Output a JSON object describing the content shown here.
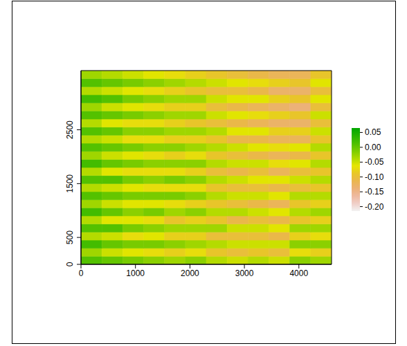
{
  "chart_data": {
    "type": "heatmap",
    "xlim": [
      0,
      4600
    ],
    "ylim": [
      0,
      3600
    ],
    "xticks": [
      0,
      1000,
      2000,
      3000,
      4000
    ],
    "yticks": [
      0,
      500,
      1500,
      2500
    ],
    "x_edges": [
      0,
      383,
      767,
      1150,
      1533,
      1917,
      2300,
      2683,
      3067,
      3450,
      3833,
      4217,
      4600
    ],
    "y_edges": [
      0,
      150,
      300,
      450,
      600,
      750,
      900,
      1050,
      1200,
      1350,
      1500,
      1650,
      1800,
      1950,
      2100,
      2250,
      2400,
      2550,
      2700,
      2850,
      3000,
      3150,
      3300,
      3450,
      3600
    ],
    "cells": [
      [
        0.01,
        0.0,
        -0.01,
        -0.02,
        -0.03,
        -0.02,
        -0.04,
        -0.05,
        -0.04,
        -0.05,
        -0.02,
        -0.03
      ],
      [
        -0.03,
        -0.05,
        -0.06,
        -0.07,
        -0.08,
        -0.07,
        -0.09,
        -0.1,
        -0.09,
        -0.1,
        -0.07,
        -0.08
      ],
      [
        0.02,
        0.0,
        -0.01,
        -0.01,
        -0.02,
        -0.03,
        -0.04,
        -0.05,
        -0.05,
        -0.05,
        -0.02,
        -0.02
      ],
      [
        -0.04,
        -0.05,
        -0.07,
        -0.06,
        -0.08,
        -0.08,
        -0.1,
        -0.1,
        -0.1,
        -0.11,
        -0.08,
        -0.07
      ],
      [
        0.01,
        0.01,
        -0.01,
        -0.02,
        -0.03,
        -0.03,
        -0.03,
        -0.05,
        -0.05,
        -0.06,
        -0.03,
        -0.03
      ],
      [
        -0.04,
        -0.06,
        -0.06,
        -0.07,
        -0.09,
        -0.08,
        -0.09,
        -0.11,
        -0.1,
        -0.11,
        -0.09,
        -0.08
      ],
      [
        0.02,
        0.0,
        -0.02,
        -0.01,
        -0.03,
        -0.02,
        -0.04,
        -0.04,
        -0.05,
        -0.06,
        -0.04,
        -0.03
      ],
      [
        -0.03,
        -0.05,
        -0.06,
        -0.06,
        -0.07,
        -0.08,
        -0.09,
        -0.1,
        -0.11,
        -0.12,
        -0.09,
        -0.08
      ],
      [
        0.01,
        0.0,
        -0.01,
        -0.01,
        -0.01,
        -0.02,
        -0.04,
        -0.05,
        -0.05,
        -0.06,
        -0.04,
        -0.04
      ],
      [
        -0.04,
        -0.05,
        -0.06,
        -0.07,
        -0.07,
        -0.07,
        -0.09,
        -0.1,
        -0.1,
        -0.11,
        -0.1,
        -0.09
      ],
      [
        0.01,
        0.01,
        -0.01,
        -0.02,
        -0.01,
        -0.02,
        -0.04,
        -0.05,
        -0.06,
        -0.06,
        -0.05,
        -0.04
      ],
      [
        -0.04,
        -0.06,
        -0.07,
        -0.07,
        -0.07,
        -0.08,
        -0.1,
        -0.11,
        -0.1,
        -0.12,
        -0.1,
        -0.09
      ],
      [
        0.02,
        0.0,
        -0.01,
        -0.02,
        -0.02,
        -0.02,
        -0.04,
        -0.05,
        -0.05,
        -0.07,
        -0.06,
        -0.04
      ],
      [
        -0.03,
        -0.05,
        -0.06,
        -0.07,
        -0.08,
        -0.07,
        -0.09,
        -0.1,
        -0.11,
        -0.12,
        -0.11,
        -0.09
      ],
      [
        0.01,
        0.0,
        -0.01,
        -0.02,
        -0.02,
        -0.03,
        -0.04,
        -0.05,
        -0.06,
        -0.07,
        -0.06,
        -0.04
      ],
      [
        -0.04,
        -0.05,
        -0.07,
        -0.07,
        -0.08,
        -0.08,
        -0.09,
        -0.11,
        -0.11,
        -0.12,
        -0.12,
        -0.09
      ],
      [
        0.01,
        0.0,
        -0.02,
        -0.02,
        -0.03,
        -0.03,
        -0.04,
        -0.06,
        -0.06,
        -0.08,
        -0.08,
        -0.05
      ],
      [
        -0.04,
        -0.06,
        -0.07,
        -0.07,
        -0.08,
        -0.09,
        -0.1,
        -0.11,
        -0.12,
        -0.13,
        -0.13,
        -0.1
      ],
      [
        0.01,
        0.0,
        -0.01,
        -0.02,
        -0.03,
        -0.03,
        -0.05,
        -0.06,
        -0.07,
        -0.08,
        -0.09,
        -0.05
      ],
      [
        -0.03,
        -0.05,
        -0.06,
        -0.07,
        -0.08,
        -0.08,
        -0.1,
        -0.11,
        -0.12,
        -0.13,
        -0.14,
        -0.1
      ],
      [
        0.02,
        0.01,
        -0.01,
        -0.02,
        -0.03,
        -0.03,
        -0.05,
        -0.06,
        -0.06,
        -0.08,
        -0.09,
        -0.06
      ],
      [
        -0.04,
        -0.05,
        -0.06,
        -0.07,
        -0.08,
        -0.09,
        -0.1,
        -0.1,
        -0.11,
        -0.13,
        -0.13,
        -0.1
      ],
      [
        0.01,
        0.0,
        -0.01,
        -0.02,
        -0.03,
        -0.04,
        -0.05,
        -0.06,
        -0.07,
        -0.08,
        -0.09,
        -0.06
      ],
      [
        -0.03,
        -0.04,
        -0.05,
        -0.06,
        -0.07,
        -0.08,
        -0.09,
        -0.1,
        -0.11,
        -0.12,
        -0.12,
        -0.09
      ]
    ],
    "colorbar_range": [
      -0.215,
      0.065
    ],
    "colorbar_ticks": [
      0.05,
      {
        "value": 0,
        "label": "0.00"
      },
      -0.05,
      {
        "value": -0.1,
        "label": "-0.10"
      },
      -0.15,
      {
        "value": -0.2,
        "label": "-0.20"
      }
    ]
  }
}
